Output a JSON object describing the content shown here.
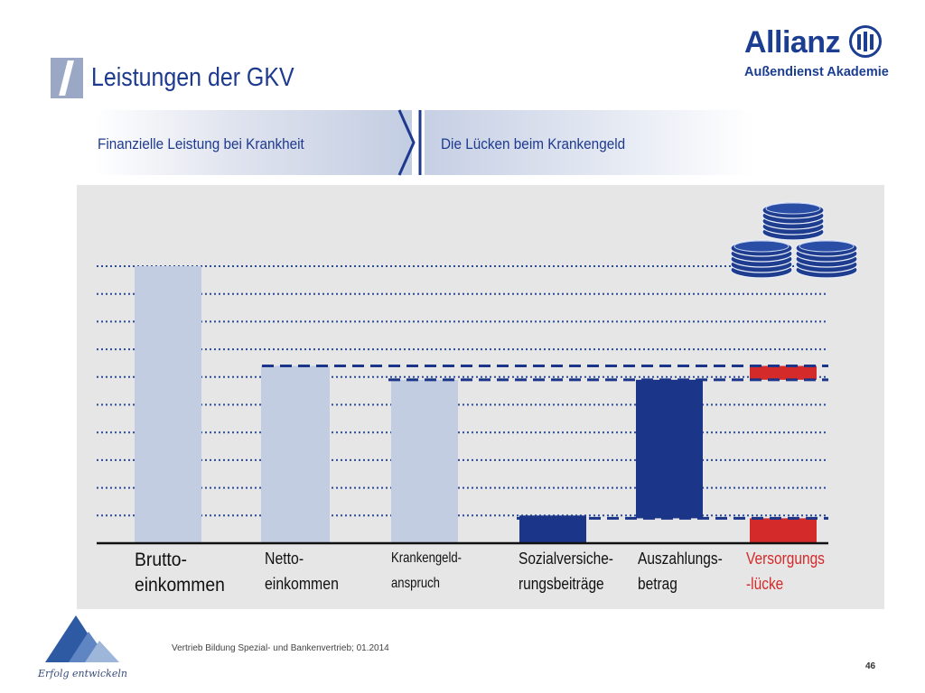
{
  "header": {
    "title": "Leistungen der GKV"
  },
  "logo": {
    "name": "Allianz",
    "subtitle": "Außendienst Akademie"
  },
  "banner": {
    "left": "Finanzielle Leistung bei Krankheit",
    "right": "Die Lücken beim Krankengeld"
  },
  "footer": {
    "text": "Vertrieb Bildung Spezial- und Bankenvertrieb; 01.2014",
    "page": "46",
    "tagline": "Erfolg entwickeln"
  },
  "colors": {
    "brand": "#1b3d92",
    "bar_light": "#c3cde2",
    "bar_dark": "#1b3589",
    "gap": "#d42a2a",
    "chart_bg": "#e6e6e6"
  },
  "coins_icon": "coin-stack-icon",
  "chart_data": {
    "type": "bar",
    "title": "",
    "xlabel": "",
    "ylabel": "",
    "ylim": [
      0,
      10
    ],
    "grid": true,
    "categories": [
      "Brutto-\neinkommen",
      "Netto-\neinkommen",
      "Krankengeld-\nanspruch",
      "Sozialversiche-\nrungsbeiträge",
      "Auszahlungs-\nbetrag",
      "Versorgungs\n-lücke"
    ],
    "bars": [
      {
        "base": 0,
        "top": 10,
        "color": "#c3cde2"
      },
      {
        "base": 0,
        "top": 6.4,
        "color": "#c3cde2"
      },
      {
        "base": 0,
        "top": 5.9,
        "color": "#c3cde2"
      },
      {
        "base": 0,
        "top": 1,
        "color": "#1b3589"
      },
      {
        "base": 0.9,
        "top": 5.9,
        "color": "#1b3589"
      },
      {
        "base": 0,
        "top": 0.9,
        "color": "#d42a2a"
      },
      {
        "base": 5.9,
        "top": 6.4,
        "color": "#d42a2a"
      }
    ],
    "reference_lines": [
      6.4,
      5.9,
      0.9
    ],
    "label_colors": [
      "#111111",
      "#111111",
      "#111111",
      "#111111",
      "#111111",
      "#d42a2a"
    ]
  }
}
